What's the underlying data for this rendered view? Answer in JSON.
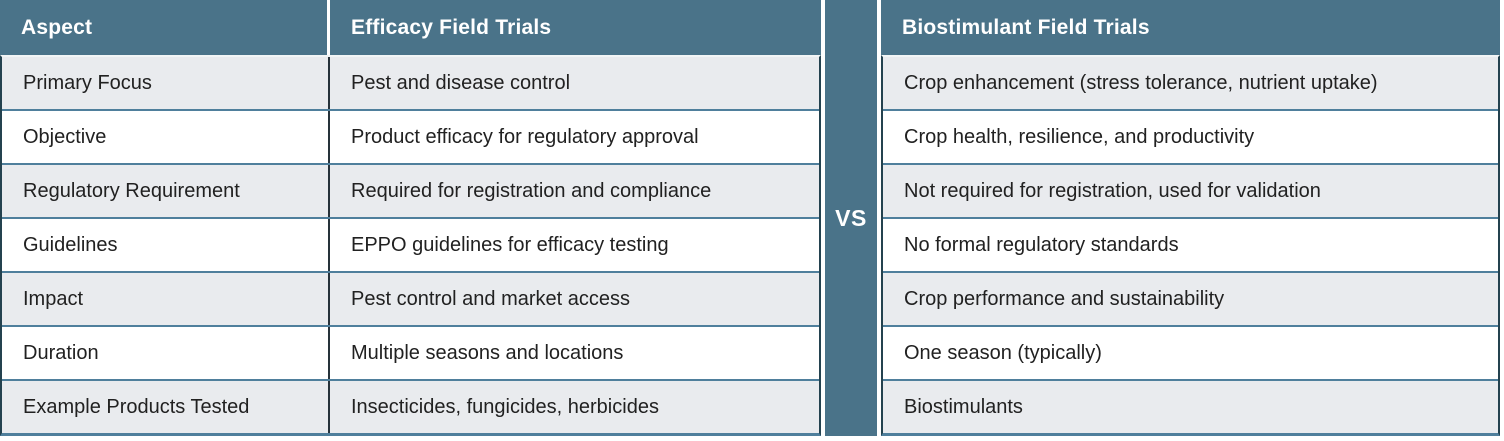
{
  "table": {
    "vs_label": "VS",
    "aspect_header": "Aspect",
    "left_header": "Efficacy Field Trials",
    "right_header": "Biostimulant Field Trials",
    "rows": [
      {
        "aspect": "Primary Focus",
        "efficacy": "Pest and disease control",
        "biostimulant": "Crop enhancement (stress tolerance, nutrient uptake)"
      },
      {
        "aspect": "Objective",
        "efficacy": "Product efficacy for regulatory approval",
        "biostimulant": "Crop health, resilience, and productivity"
      },
      {
        "aspect": "Regulatory Requirement",
        "efficacy": "Required for registration and compliance",
        "biostimulant": "Not required for registration, used for validation"
      },
      {
        "aspect": "Guidelines",
        "efficacy": "EPPO guidelines for efficacy testing",
        "biostimulant": "No formal regulatory standards"
      },
      {
        "aspect": "Impact",
        "efficacy": "Pest control and market access",
        "biostimulant": "Crop performance and sustainability"
      },
      {
        "aspect": "Duration",
        "efficacy": "Multiple seasons and locations",
        "biostimulant": "One season (typically)"
      },
      {
        "aspect": "Example Products Tested",
        "efficacy": "Insecticides, fungicides, herbicides",
        "biostimulant": "Biostimulants"
      }
    ],
    "colors": {
      "header_bg": "#4a7389",
      "row_alt_bg": "#e9ebee",
      "row_bg": "#ffffff",
      "separator": "#4f7f9c",
      "dark_border": "#26323a",
      "header_text": "#ffffff",
      "body_text": "#212121"
    }
  }
}
